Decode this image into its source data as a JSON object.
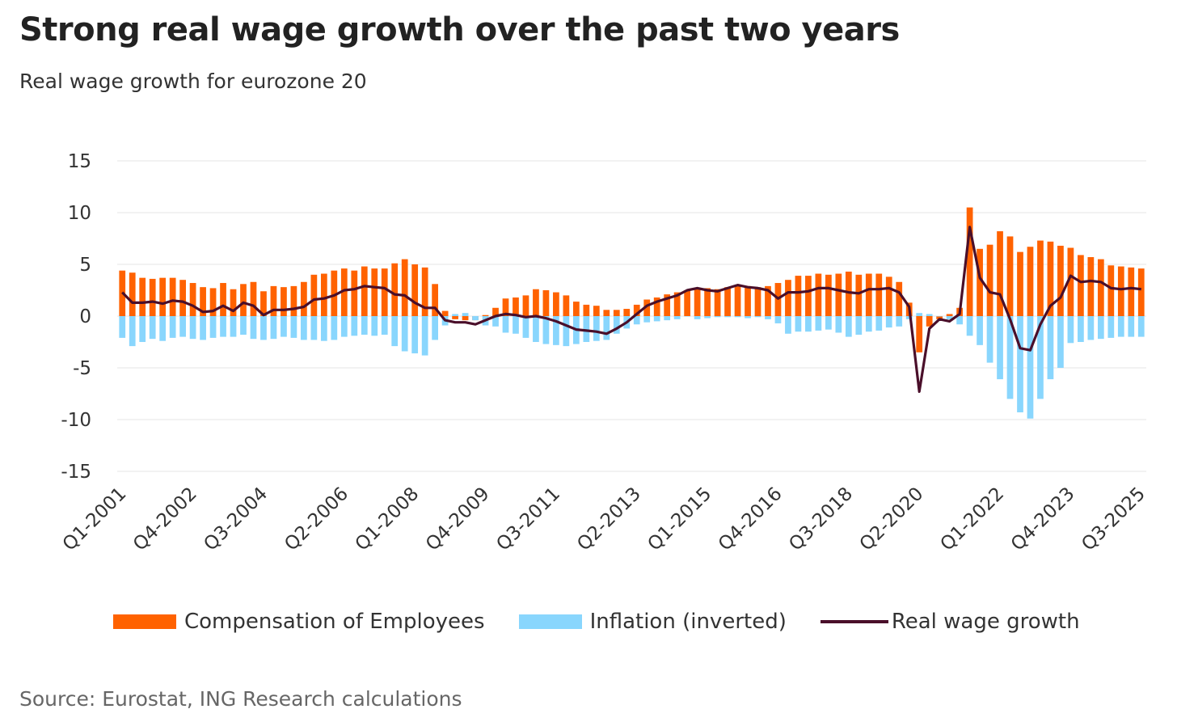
{
  "chart_data": {
    "type": "bar",
    "title": "Strong real wage growth over the past two years",
    "subtitle": "Real wage growth for eurozone 20",
    "source": "Source: Eurostat, ING Research calculations",
    "ylim": [
      -15,
      15
    ],
    "yticks": [
      15,
      10,
      5,
      0,
      -5,
      -10,
      -15
    ],
    "grid": true,
    "legend_position": "bottom",
    "tick_labels": [
      "Q1-2001",
      "Q4-2002",
      "Q3-2004",
      "Q2-2006",
      "Q1-2008",
      "Q4-2009",
      "Q3-2011",
      "Q2-2013",
      "Q1-2015",
      "Q4-2016",
      "Q3-2018",
      "Q2-2020",
      "Q1-2022",
      "Q4-2023",
      "Q3-2025"
    ],
    "x_start": "Q1-2001",
    "x_end": "Q3-2025",
    "colors": {
      "compensation": "#FF6200",
      "inflation": "#89D6FD",
      "real_wage": "#4A0F2A",
      "grid": "#e6e6e6"
    },
    "series": [
      {
        "name": "Compensation of Employees",
        "kind": "bar",
        "values": [
          4.4,
          4.2,
          3.7,
          3.6,
          3.7,
          3.7,
          3.5,
          3.2,
          2.8,
          2.7,
          3.2,
          2.6,
          3.1,
          3.3,
          2.4,
          2.9,
          2.8,
          2.9,
          3.3,
          4.0,
          4.1,
          4.4,
          4.6,
          4.4,
          4.8,
          4.6,
          4.6,
          5.1,
          5.5,
          5.0,
          4.7,
          3.1,
          0.5,
          -0.3,
          -0.4,
          -0.4,
          0.1,
          0.8,
          1.7,
          1.8,
          2.0,
          2.6,
          2.5,
          2.3,
          2.0,
          1.4,
          1.1,
          1.0,
          0.6,
          0.6,
          0.7,
          1.1,
          1.6,
          1.8,
          2.1,
          2.3,
          2.5,
          2.7,
          2.7,
          2.6,
          2.8,
          3.0,
          2.9,
          2.8,
          2.9,
          3.2,
          3.5,
          3.9,
          3.9,
          4.1,
          4.0,
          4.1,
          4.3,
          4.0,
          4.1,
          4.1,
          3.8,
          3.3,
          1.3,
          -3.5,
          -1.0,
          -0.3,
          0.2,
          0.8,
          10.5,
          6.5,
          6.9,
          8.2,
          7.7,
          6.2,
          6.7,
          7.3,
          7.2,
          6.8,
          6.6,
          5.9,
          5.7,
          5.5,
          4.9,
          4.8,
          4.7,
          4.6
        ]
      },
      {
        "name": "Inflation (inverted)",
        "kind": "bar",
        "values": [
          -2.1,
          -2.9,
          -2.5,
          -2.2,
          -2.4,
          -2.1,
          -2.0,
          -2.2,
          -2.3,
          -2.1,
          -2.0,
          -2.0,
          -1.8,
          -2.2,
          -2.3,
          -2.2,
          -2.0,
          -2.1,
          -2.3,
          -2.3,
          -2.4,
          -2.3,
          -2.0,
          -1.9,
          -1.8,
          -1.9,
          -1.8,
          -2.9,
          -3.4,
          -3.6,
          -3.8,
          -2.3,
          -0.9,
          0.2,
          0.3,
          -0.4,
          -0.9,
          -1.0,
          -1.6,
          -1.7,
          -2.1,
          -2.5,
          -2.7,
          -2.8,
          -2.9,
          -2.7,
          -2.5,
          -2.4,
          -2.3,
          -1.7,
          -1.2,
          -0.8,
          -0.6,
          -0.5,
          -0.4,
          -0.3,
          0.0,
          -0.3,
          -0.2,
          -0.1,
          -0.1,
          -0.1,
          -0.2,
          -0.1,
          -0.3,
          -0.7,
          -1.7,
          -1.5,
          -1.5,
          -1.4,
          -1.3,
          -1.6,
          -2.0,
          -1.8,
          -1.5,
          -1.4,
          -1.1,
          -1.0,
          -0.3,
          0.3,
          0.2,
          0.0,
          -0.3,
          -0.8,
          -1.9,
          -2.8,
          -4.5,
          -6.1,
          -8.0,
          -9.3,
          -9.9,
          -8.0,
          -6.1,
          -5.0,
          -2.6,
          -2.5,
          -2.3,
          -2.2,
          -2.1,
          -2.0,
          -2.0,
          -2.0
        ]
      },
      {
        "name": "Real wage growth",
        "kind": "line",
        "values": [
          2.3,
          1.3,
          1.3,
          1.4,
          1.2,
          1.5,
          1.4,
          1.0,
          0.4,
          0.5,
          1.0,
          0.5,
          1.3,
          1.0,
          0.1,
          0.6,
          0.6,
          0.7,
          0.9,
          1.6,
          1.7,
          2.0,
          2.5,
          2.6,
          2.9,
          2.8,
          2.7,
          2.1,
          2.0,
          1.3,
          0.8,
          0.8,
          -0.4,
          -0.6,
          -0.6,
          -0.8,
          -0.4,
          0.0,
          0.2,
          0.1,
          -0.1,
          0.0,
          -0.2,
          -0.5,
          -0.9,
          -1.3,
          -1.4,
          -1.5,
          -1.7,
          -1.2,
          -0.6,
          0.2,
          1.0,
          1.4,
          1.7,
          2.0,
          2.5,
          2.7,
          2.5,
          2.4,
          2.7,
          3.0,
          2.8,
          2.7,
          2.5,
          1.7,
          2.3,
          2.3,
          2.4,
          2.7,
          2.7,
          2.5,
          2.3,
          2.2,
          2.6,
          2.6,
          2.7,
          2.3,
          0.9,
          -7.3,
          -1.2,
          -0.3,
          -0.5,
          0.2,
          8.6,
          3.7,
          2.3,
          2.1,
          -0.3,
          -3.1,
          -3.3,
          -0.8,
          1.0,
          1.8,
          3.9,
          3.3,
          3.4,
          3.3,
          2.7,
          2.6,
          2.7,
          2.6
        ]
      }
    ]
  }
}
